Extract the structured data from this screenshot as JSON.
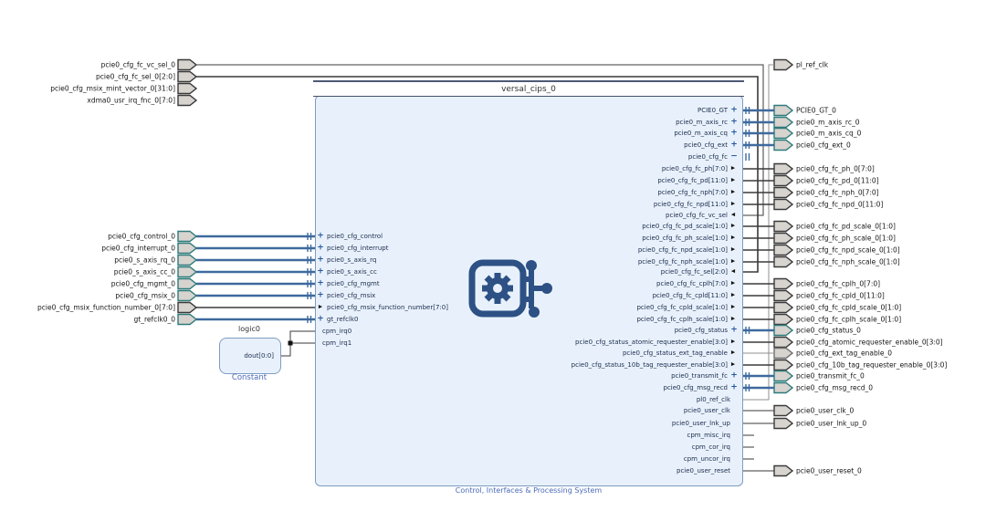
{
  "diagram": {
    "block": {
      "name": "versal_cips_0",
      "type_label": "Control, Interfaces & Processing System",
      "left_pins": [
        {
          "name": "pcie0_cfg_control",
          "kind": "iface"
        },
        {
          "name": "pcie0_cfg_interrupt",
          "kind": "iface"
        },
        {
          "name": "pcie0_s_axis_rq",
          "kind": "iface"
        },
        {
          "name": "pcie0_s_axis_cc",
          "kind": "iface"
        },
        {
          "name": "pcie0_cfg_mgmt",
          "kind": "iface"
        },
        {
          "name": "pcie0_cfg_msix",
          "kind": "iface"
        },
        {
          "name": "pcie0_cfg_msix_function_number[7:0]",
          "kind": "in"
        },
        {
          "name": "gt_refclk0",
          "kind": "iface"
        },
        {
          "name": "cpm_irq0",
          "kind": "plain"
        },
        {
          "name": "cpm_irq1",
          "kind": "plain"
        }
      ],
      "right_pins": [
        {
          "name": "PCIE0_GT",
          "kind": "iface"
        },
        {
          "name": "pcie0_m_axis_rc",
          "kind": "iface"
        },
        {
          "name": "pcie0_m_axis_cq",
          "kind": "iface"
        },
        {
          "name": "pcie0_cfg_ext",
          "kind": "iface"
        },
        {
          "name": "pcie0_cfg_fc",
          "kind": "iface_open"
        },
        {
          "name": "pcie0_cfg_fc_ph[7:0]",
          "kind": "out"
        },
        {
          "name": "pcie0_cfg_fc_pd[11:0]",
          "kind": "out"
        },
        {
          "name": "pcie0_cfg_fc_nph[7:0]",
          "kind": "out"
        },
        {
          "name": "pcie0_cfg_fc_npd[11:0]",
          "kind": "out"
        },
        {
          "name": "pcie0_cfg_fc_vc_sel",
          "kind": "in"
        },
        {
          "name": "pcie0_cfg_fc_pd_scale[1:0]",
          "kind": "out"
        },
        {
          "name": "pcie0_cfg_fc_ph_scale[1:0]",
          "kind": "out"
        },
        {
          "name": "pcie0_cfg_fc_npd_scale[1:0]",
          "kind": "out"
        },
        {
          "name": "pcie0_cfg_fc_nph_scale[1:0]",
          "kind": "out"
        },
        {
          "name": "pcie0_cfg_fc_sel[2:0]",
          "kind": "in"
        },
        {
          "name": "pcie0_cfg_fc_cplh[7:0]",
          "kind": "out"
        },
        {
          "name": "pcie0_cfg_fc_cpld[11:0]",
          "kind": "out"
        },
        {
          "name": "pcie0_cfg_fc_cpld_scale[1:0]",
          "kind": "out"
        },
        {
          "name": "pcie0_cfg_fc_cplh_scale[1:0]",
          "kind": "out"
        },
        {
          "name": "pcie0_cfg_status",
          "kind": "iface"
        },
        {
          "name": "pcie0_cfg_status_atomic_requester_enable[3:0]",
          "kind": "out"
        },
        {
          "name": "pcie0_cfg_status_ext_tag_enable",
          "kind": "out"
        },
        {
          "name": "pcie0_cfg_status_10b_tag_requester_enable[3:0]",
          "kind": "out"
        },
        {
          "name": "pcie0_transmit_fc",
          "kind": "iface"
        },
        {
          "name": "pcie0_cfg_msg_recd",
          "kind": "iface"
        },
        {
          "name": "pl0_ref_clk",
          "kind": "plain"
        },
        {
          "name": "pcie0_user_clk",
          "kind": "plain"
        },
        {
          "name": "pcie0_user_lnk_up",
          "kind": "plain"
        },
        {
          "name": "cpm_misc_irq",
          "kind": "plain"
        },
        {
          "name": "cpm_cor_irq",
          "kind": "plain"
        },
        {
          "name": "cpm_uncor_irq",
          "kind": "plain"
        },
        {
          "name": "pcie0_user_reset",
          "kind": "plain"
        }
      ]
    },
    "constant_block": {
      "name": "logic0",
      "type_label": "Constant",
      "pin": "dout[0:0]"
    },
    "external_ports": {
      "top_left": [
        {
          "label": "pcie0_cfg_fc_vc_sel_0",
          "kind": "scalar",
          "connected": true
        },
        {
          "label": "pcie0_cfg_fc_sel_0[2:0]",
          "kind": "bus",
          "connected": true
        },
        {
          "label": "pcie0_cfg_msix_mint_vector_0[31:0]",
          "kind": "bus",
          "connected": false
        },
        {
          "label": "xdma0_usr_irq_fnc_0[7:0]",
          "kind": "bus",
          "connected": false
        }
      ],
      "left": [
        {
          "label": "pcie0_cfg_control_0",
          "kind": "iface"
        },
        {
          "label": "pcie0_cfg_interrupt_0",
          "kind": "iface"
        },
        {
          "label": "pcie0_s_axis_rq_0",
          "kind": "iface"
        },
        {
          "label": "pcie0_s_axis_cc_0",
          "kind": "iface"
        },
        {
          "label": "pcie0_cfg_mgmt_0",
          "kind": "iface"
        },
        {
          "label": "pcie0_cfg_msix_0",
          "kind": "iface"
        },
        {
          "label": "pcie0_cfg_msix_function_number_0[7:0]",
          "kind": "bus"
        },
        {
          "label": "gt_refclk0_0",
          "kind": "iface"
        }
      ],
      "right": [
        {
          "label": "pl_ref_clk",
          "kind": "clock"
        },
        {
          "label": "PCIE0_GT_0",
          "kind": "iface"
        },
        {
          "label": "pcie0_m_axis_rc_0",
          "kind": "iface"
        },
        {
          "label": "pcie0_m_axis_cq_0",
          "kind": "iface"
        },
        {
          "label": "pcie0_cfg_ext_0",
          "kind": "iface"
        },
        {
          "label": "pcie0_cfg_fc_ph_0[7:0]",
          "kind": "bus"
        },
        {
          "label": "pcie0_cfg_fc_pd_0[11:0]",
          "kind": "bus"
        },
        {
          "label": "pcie0_cfg_fc_nph_0[7:0]",
          "kind": "bus"
        },
        {
          "label": "pcie0_cfg_fc_npd_0[11:0]",
          "kind": "bus"
        },
        {
          "label": "pcie0_cfg_fc_pd_scale_0[1:0]",
          "kind": "bus"
        },
        {
          "label": "pcie0_cfg_fc_ph_scale_0[1:0]",
          "kind": "bus"
        },
        {
          "label": "pcie0_cfg_fc_npd_scale_0[1:0]",
          "kind": "bus"
        },
        {
          "label": "pcie0_cfg_fc_nph_scale_0[1:0]",
          "kind": "bus"
        },
        {
          "label": "pcie0_cfg_fc_cplh_0[7:0]",
          "kind": "bus"
        },
        {
          "label": "pcie0_cfg_fc_cpld_0[11:0]",
          "kind": "bus"
        },
        {
          "label": "pcie0_cfg_fc_cpld_scale_0[1:0]",
          "kind": "bus"
        },
        {
          "label": "pcie0_cfg_fc_cplh_scale_0[1:0]",
          "kind": "bus"
        },
        {
          "label": "pcie0_cfg_status_0",
          "kind": "iface"
        },
        {
          "label": "pcie0_cfg_atomic_requester_enable_0[3:0]",
          "kind": "bus"
        },
        {
          "label": "pcie0_cfg_ext_tag_enable_0",
          "kind": "gray"
        },
        {
          "label": "pcie0_cfg_10b_tag_requester_enable_0[3:0]",
          "kind": "bus"
        },
        {
          "label": "pcie0_transmit_fc_0",
          "kind": "iface"
        },
        {
          "label": "pcie0_cfg_msg_recd_0",
          "kind": "iface"
        },
        {
          "label": "pcie0_user_clk_0",
          "kind": "scalar"
        },
        {
          "label": "pcie0_user_lnk_up_0",
          "kind": "scalar"
        },
        {
          "label": "pcie0_user_reset_0",
          "kind": "scalar"
        }
      ]
    },
    "colors": {
      "block_fill": "#e8f1fb",
      "block_border": "#7e9cc0",
      "interface_wire": "#3e6a9e",
      "net_wire": "#3a3a3a",
      "clock_wire": "#8f8f8f",
      "port_fill": "#d7d3ce",
      "port_border": "#3a3a3a",
      "interface_port_border": "#2e7b7b",
      "annotation_blue": "#4a6ab8",
      "icon_blue": "#2d5185"
    }
  }
}
